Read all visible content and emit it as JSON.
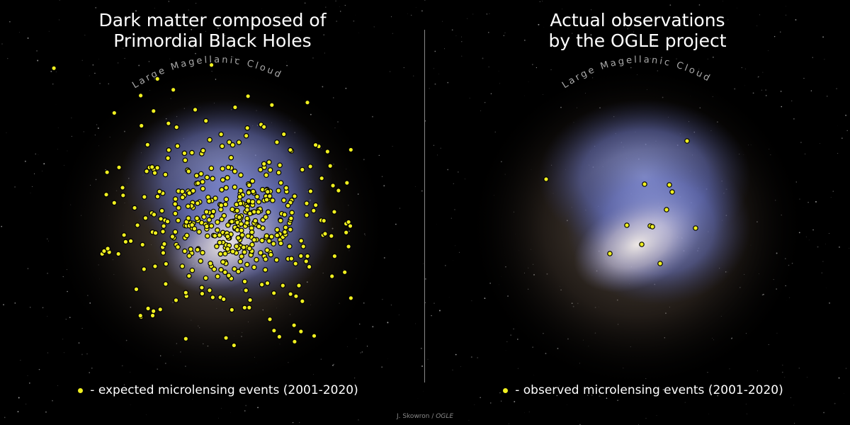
{
  "left_panel": {
    "title_line1": "Dark matter composed of",
    "title_line2": "Primordial Black Holes",
    "arc_label": "Large Magellanic Cloud",
    "legend": "- expected microlensing events (2001-2020)"
  },
  "right_panel": {
    "title_line1": "Actual observations",
    "title_line2": "by the OGLE project",
    "arc_label": "Large Magellanic Cloud",
    "legend": "- observed microlensing events (2001-2020)"
  },
  "credit": {
    "author": "J. Skowron / ",
    "org": "OGLE"
  },
  "colors": {
    "marker": "#f0f020",
    "marker_edge": "#000000",
    "background": "#000000"
  }
}
